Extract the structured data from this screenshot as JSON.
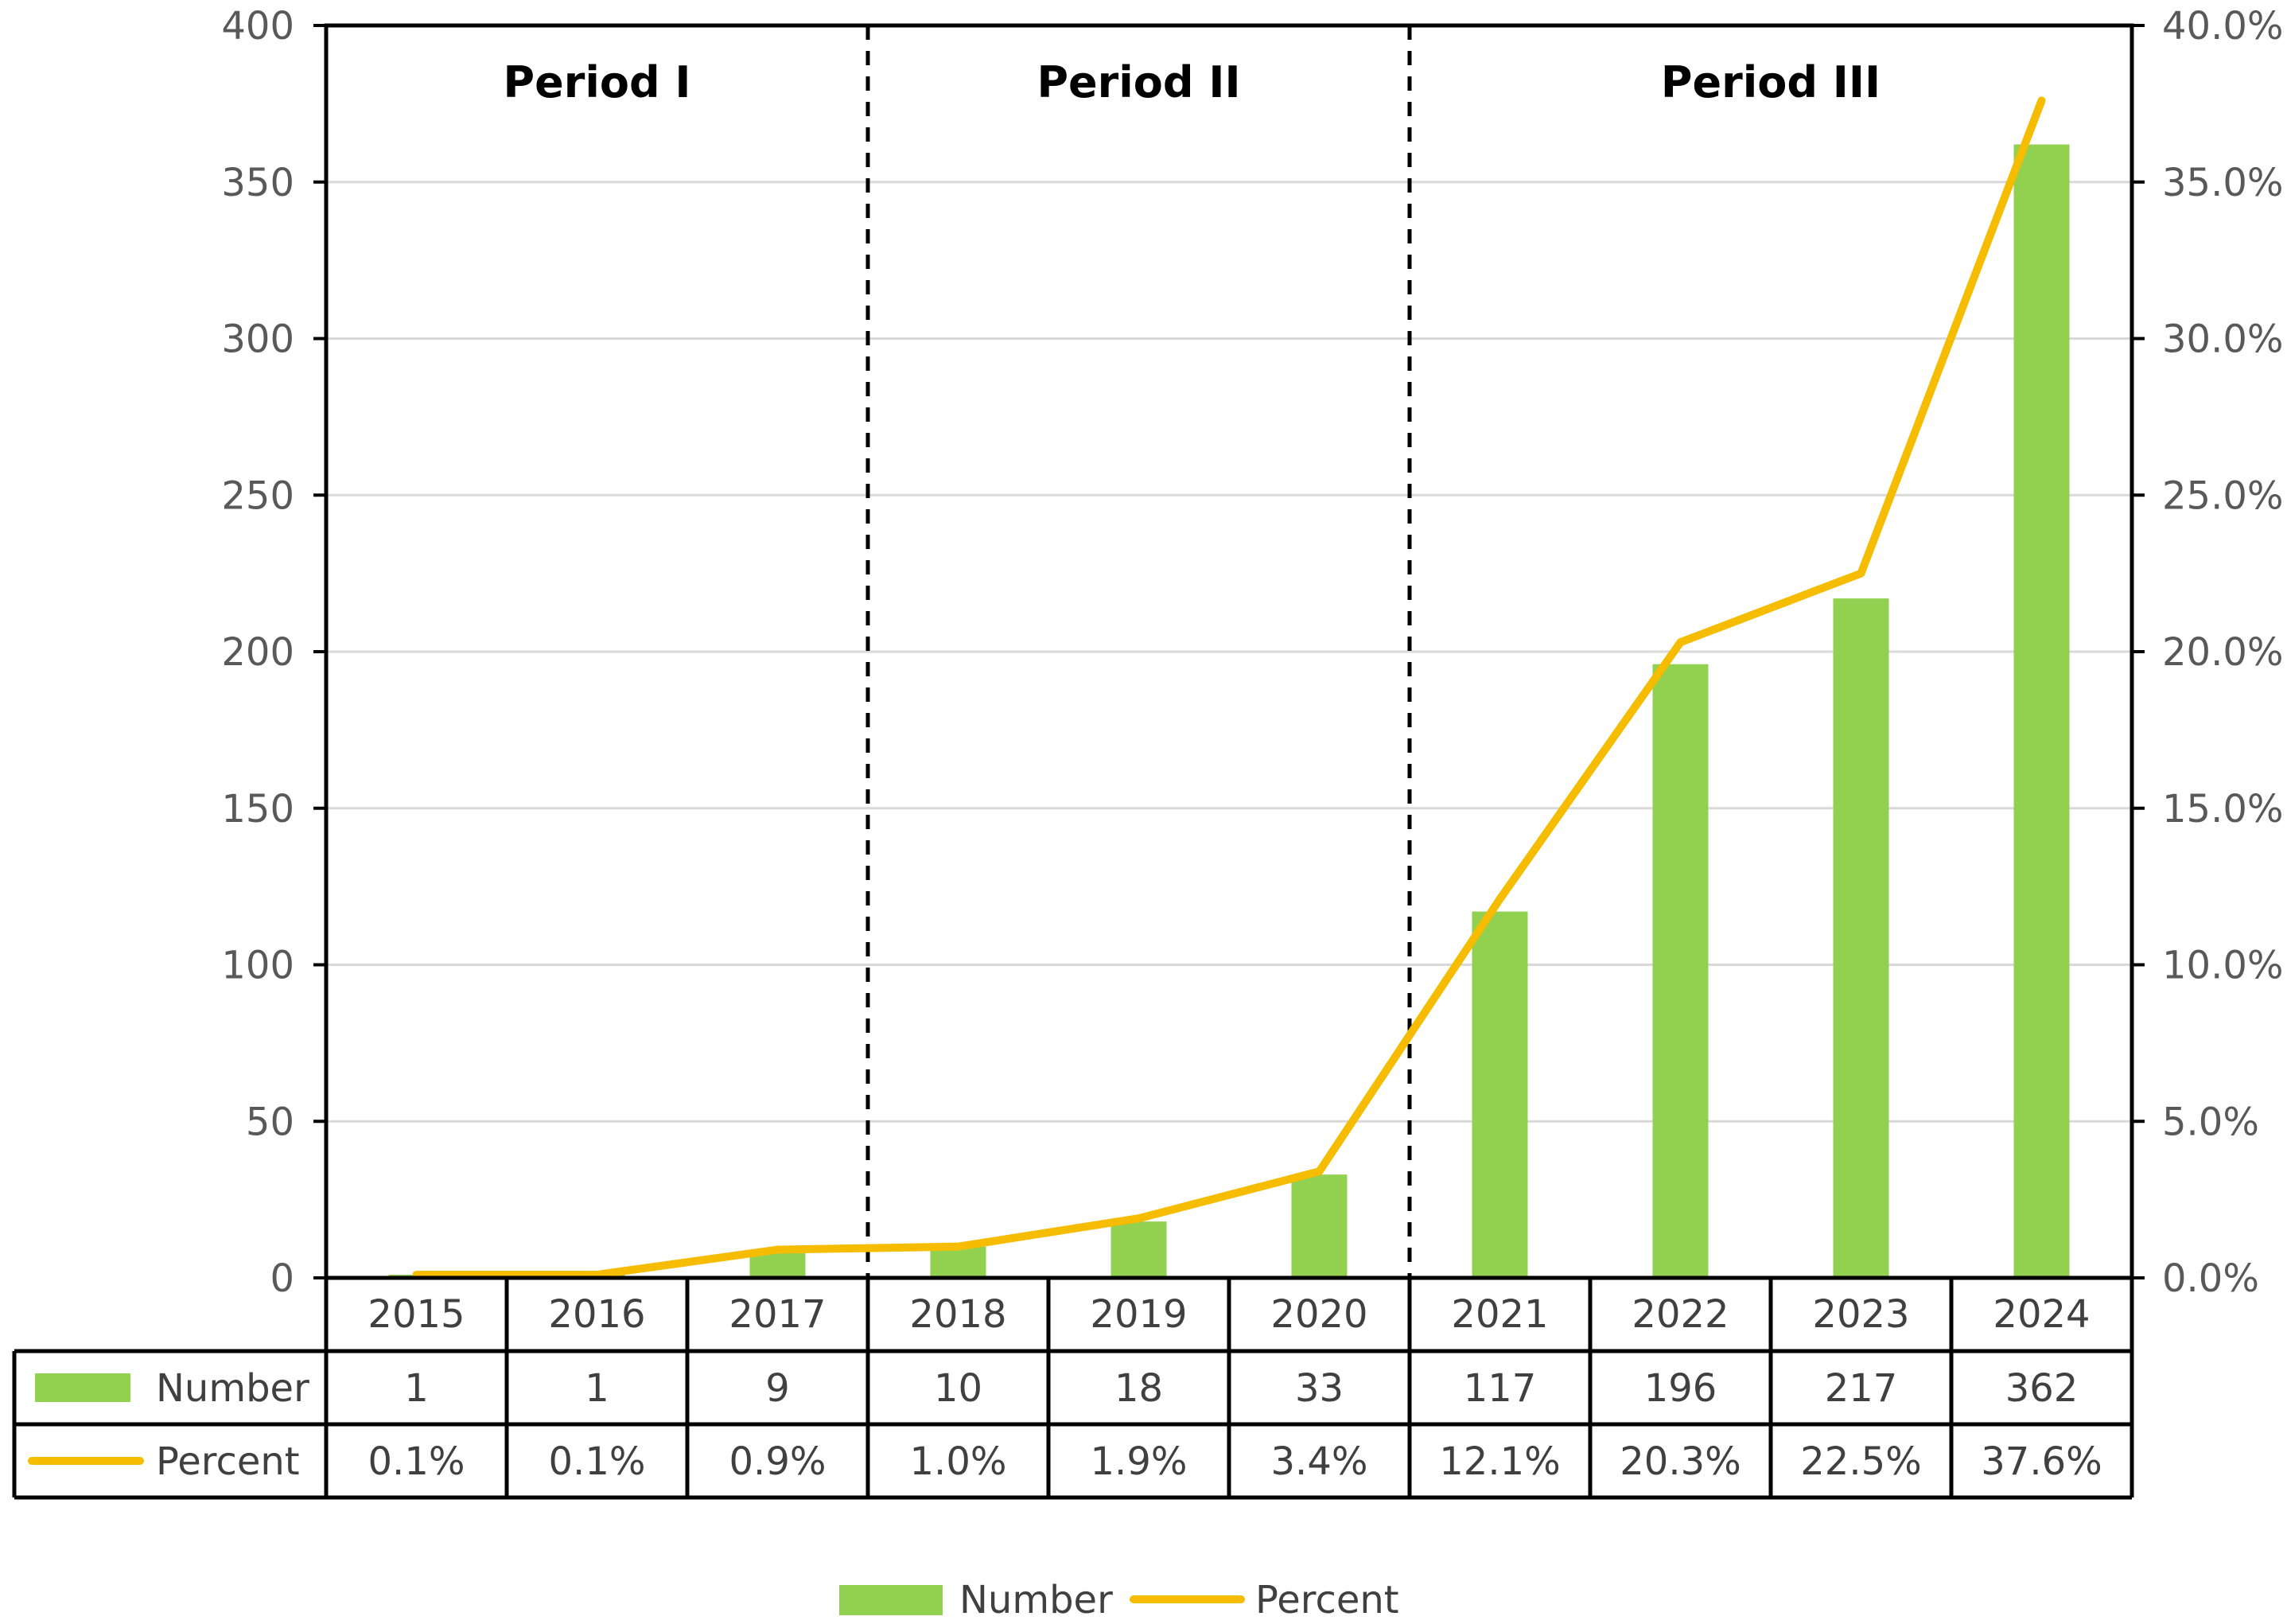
{
  "chart_data": {
    "type": "bar",
    "categories": [
      "2015",
      "2016",
      "2017",
      "2018",
      "2019",
      "2020",
      "2021",
      "2022",
      "2023",
      "2024"
    ],
    "series": [
      {
        "name": "Number",
        "type": "bar",
        "axis": "left",
        "color": "#92D050",
        "values": [
          1,
          1,
          9,
          10,
          18,
          33,
          117,
          196,
          217,
          362
        ]
      },
      {
        "name": "Percent",
        "type": "line",
        "axis": "right",
        "color": "#F5BC00",
        "values": [
          0.1,
          0.1,
          0.9,
          1.0,
          1.9,
          3.4,
          12.1,
          20.3,
          22.5,
          37.6
        ]
      }
    ],
    "y_left": {
      "min": 0,
      "max": 400,
      "ticks": [
        "0",
        "50",
        "100",
        "150",
        "200",
        "250",
        "300",
        "350",
        "400"
      ]
    },
    "y_right": {
      "min": 0,
      "max": 40,
      "ticks": [
        "0.0%",
        "5.0%",
        "10.0%",
        "15.0%",
        "20.0%",
        "25.0%",
        "30.0%",
        "35.0%",
        "40.0%"
      ]
    },
    "periods": [
      {
        "label": "Period I",
        "from": "2015",
        "to": "2017"
      },
      {
        "label": "Period II",
        "from": "2018",
        "to": "2020"
      },
      {
        "label": "Period III",
        "from": "2021",
        "to": "2024"
      }
    ],
    "data_table": {
      "rows": [
        {
          "label": "Number",
          "cells": [
            "1",
            "1",
            "9",
            "10",
            "18",
            "33",
            "117",
            "196",
            "217",
            "362"
          ]
        },
        {
          "label": "Percent",
          "cells": [
            "0.1%",
            "0.1%",
            "0.9%",
            "1.0%",
            "1.9%",
            "3.4%",
            "12.1%",
            "20.3%",
            "22.5%",
            "37.6%"
          ]
        }
      ]
    },
    "legend": {
      "position": "bottom",
      "items": [
        "Number",
        "Percent"
      ]
    },
    "grid": true,
    "gridline_color": "#D9D9D9"
  }
}
